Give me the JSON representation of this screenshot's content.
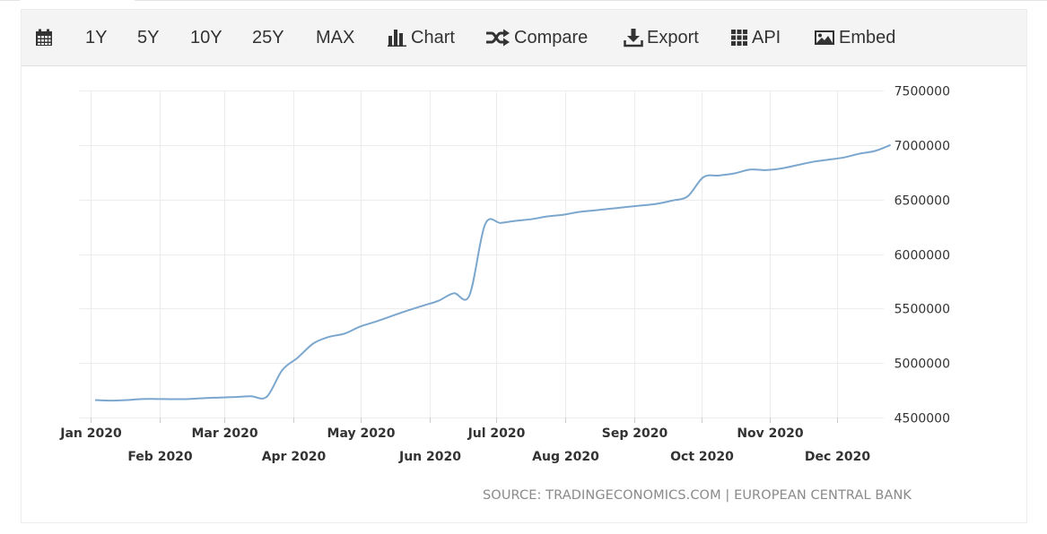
{
  "toolbar": {
    "calendar_icon": "calendar-icon",
    "items": [
      {
        "label": "1Y"
      },
      {
        "label": "5Y"
      },
      {
        "label": "10Y"
      },
      {
        "label": "25Y"
      },
      {
        "label": "MAX"
      },
      {
        "label": "Chart",
        "icon": "bar-chart-icon"
      },
      {
        "label": "Compare",
        "icon": "shuffle-icon"
      },
      {
        "label": "Export",
        "icon": "download-icon"
      },
      {
        "label": "API",
        "icon": "grid-icon"
      },
      {
        "label": "Embed",
        "icon": "image-icon"
      }
    ]
  },
  "source_text": "SOURCE: TRADINGECONOMICS.COM | EUROPEAN CENTRAL BANK",
  "colors": {
    "line": "#7ba7cf",
    "grid": "#ececec",
    "axis_text": "#333333",
    "source_text": "#8a8a8a",
    "toolbar_bg": "#f4f4f4"
  },
  "chart_data": {
    "type": "line",
    "title": "",
    "xlabel": "",
    "ylabel": "",
    "ylim": [
      4500000,
      7500000
    ],
    "y_ticks": [
      "7500000",
      "7000000",
      "6500000",
      "6000000",
      "5500000",
      "5000000",
      "4500000"
    ],
    "x_ticks": [
      "Jan 2020",
      "Feb 2020",
      "Mar 2020",
      "Apr 2020",
      "May 2020",
      "Jun 2020",
      "Jul 2020",
      "Aug 2020",
      "Sep 2020",
      "Oct 2020",
      "Nov 2020",
      "Dec 2020"
    ],
    "x_tick_dates": [
      "2020-01-01",
      "2020-02-01",
      "2020-03-01",
      "2020-04-01",
      "2020-05-01",
      "2020-06-01",
      "2020-07-01",
      "2020-08-01",
      "2020-09-01",
      "2020-10-01",
      "2020-11-01",
      "2020-12-01"
    ],
    "grid": true,
    "series": [
      {
        "points": [
          [
            "2020-01-03",
            4660000
          ],
          [
            "2020-01-10",
            4655000
          ],
          [
            "2020-01-17",
            4660000
          ],
          [
            "2020-01-24",
            4670000
          ],
          [
            "2020-01-31",
            4670000
          ],
          [
            "2020-02-07",
            4668000
          ],
          [
            "2020-02-14",
            4670000
          ],
          [
            "2020-02-21",
            4678000
          ],
          [
            "2020-02-28",
            4683000
          ],
          [
            "2020-03-06",
            4688000
          ],
          [
            "2020-03-13",
            4695000
          ],
          [
            "2020-03-20",
            4690000
          ],
          [
            "2020-03-27",
            4935000
          ],
          [
            "2020-04-03",
            5050000
          ],
          [
            "2020-04-10",
            5180000
          ],
          [
            "2020-04-17",
            5240000
          ],
          [
            "2020-04-24",
            5270000
          ],
          [
            "2020-05-01",
            5335000
          ],
          [
            "2020-05-08",
            5380000
          ],
          [
            "2020-05-15",
            5430000
          ],
          [
            "2020-05-22",
            5480000
          ],
          [
            "2020-05-29",
            5525000
          ],
          [
            "2020-06-05",
            5570000
          ],
          [
            "2020-06-12",
            5640000
          ],
          [
            "2020-06-19",
            5620000
          ],
          [
            "2020-06-26",
            6270000
          ],
          [
            "2020-07-03",
            6285000
          ],
          [
            "2020-07-10",
            6305000
          ],
          [
            "2020-07-17",
            6320000
          ],
          [
            "2020-07-24",
            6345000
          ],
          [
            "2020-07-31",
            6360000
          ],
          [
            "2020-08-07",
            6385000
          ],
          [
            "2020-08-14",
            6400000
          ],
          [
            "2020-08-21",
            6415000
          ],
          [
            "2020-08-28",
            6430000
          ],
          [
            "2020-09-04",
            6445000
          ],
          [
            "2020-09-11",
            6460000
          ],
          [
            "2020-09-18",
            6490000
          ],
          [
            "2020-09-25",
            6530000
          ],
          [
            "2020-10-02",
            6705000
          ],
          [
            "2020-10-09",
            6720000
          ],
          [
            "2020-10-16",
            6740000
          ],
          [
            "2020-10-23",
            6775000
          ],
          [
            "2020-10-30",
            6770000
          ],
          [
            "2020-11-06",
            6785000
          ],
          [
            "2020-11-13",
            6815000
          ],
          [
            "2020-11-20",
            6845000
          ],
          [
            "2020-11-27",
            6865000
          ],
          [
            "2020-12-04",
            6885000
          ],
          [
            "2020-12-11",
            6920000
          ],
          [
            "2020-12-18",
            6945000
          ],
          [
            "2020-12-25",
            7000000
          ]
        ]
      }
    ]
  }
}
